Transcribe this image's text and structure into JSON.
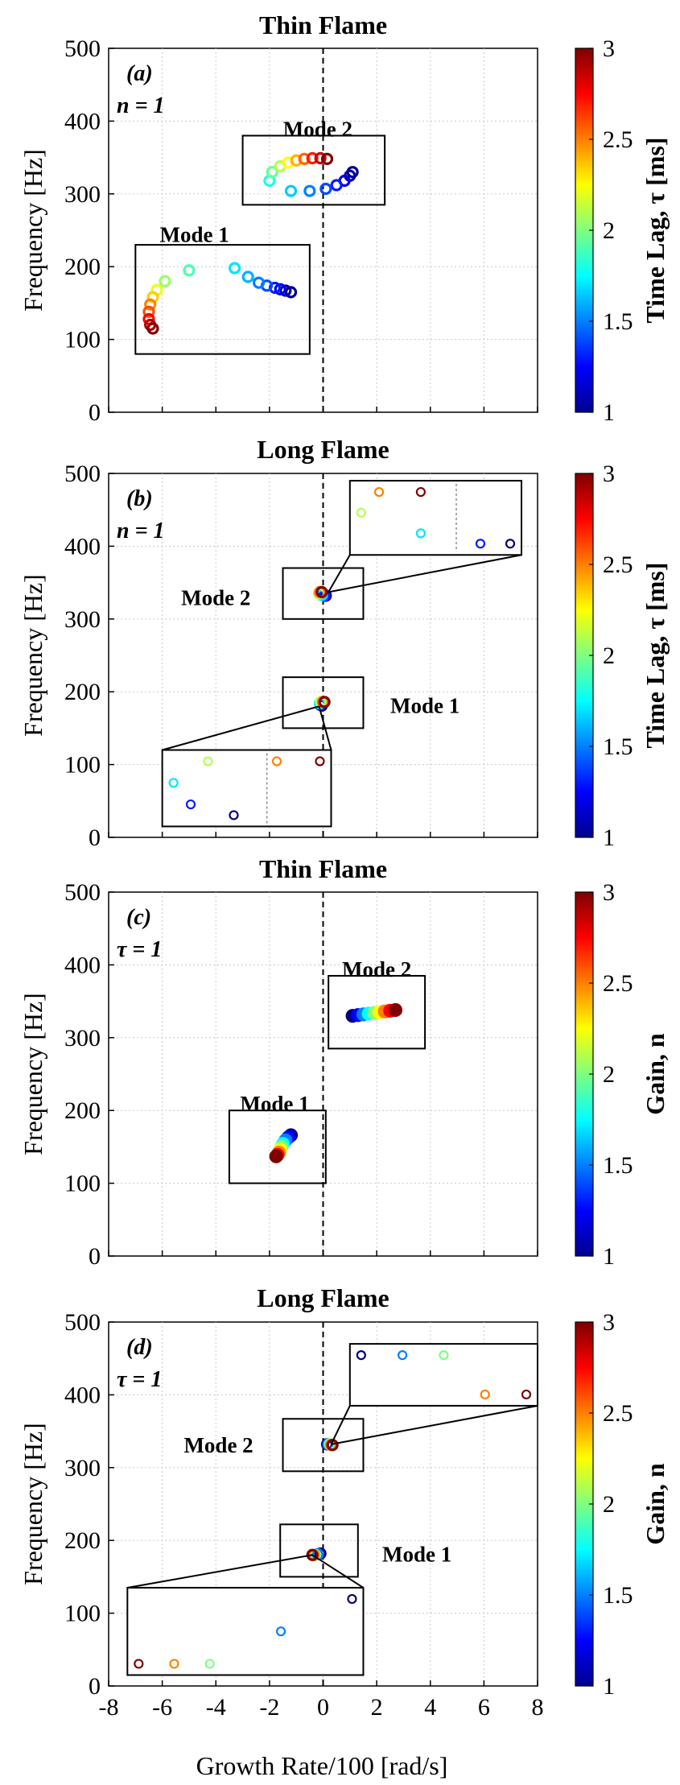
{
  "figure": {
    "xlabel": "Growth Rate/100 [rad/s]",
    "ylabel": "Frequency [Hz]",
    "xlim": [
      -8,
      8
    ],
    "ylim": [
      0,
      500
    ],
    "xticks": [
      "-8",
      "-6",
      "-4",
      "-2",
      "0",
      "2",
      "4",
      "6",
      "8"
    ],
    "yticks": [
      "0",
      "100",
      "200",
      "300",
      "400",
      "500"
    ],
    "colorbar_ticks": [
      "1",
      "1.5",
      "2",
      "2.5",
      "3"
    ],
    "colorbar_range": [
      1,
      3
    ]
  },
  "chart_data": [
    {
      "type": "scatter",
      "panel": "(a)",
      "title": "Thin Flame",
      "param_label": "n = 1",
      "colorbar_label": "Time Lag, τ [ms]",
      "color_variable": "time lag τ [ms]",
      "modes": [
        {
          "name": "Mode 1",
          "points": [
            {
              "x": -1.2,
              "y": 165,
              "c": 1.0
            },
            {
              "x": -1.4,
              "y": 167,
              "c": 1.1
            },
            {
              "x": -1.6,
              "y": 169,
              "c": 1.2
            },
            {
              "x": -1.8,
              "y": 171,
              "c": 1.3
            },
            {
              "x": -2.1,
              "y": 174,
              "c": 1.4
            },
            {
              "x": -2.4,
              "y": 178,
              "c": 1.5
            },
            {
              "x": -2.8,
              "y": 186,
              "c": 1.6
            },
            {
              "x": -3.3,
              "y": 198,
              "c": 1.7
            },
            {
              "x": -5.0,
              "y": 195,
              "c": 1.9
            },
            {
              "x": -5.9,
              "y": 180,
              "c": 2.05
            },
            {
              "x": -6.2,
              "y": 168,
              "c": 2.2
            },
            {
              "x": -6.35,
              "y": 158,
              "c": 2.35
            },
            {
              "x": -6.45,
              "y": 148,
              "c": 2.5
            },
            {
              "x": -6.5,
              "y": 138,
              "c": 2.6
            },
            {
              "x": -6.5,
              "y": 128,
              "c": 2.75
            },
            {
              "x": -6.45,
              "y": 120,
              "c": 2.9
            },
            {
              "x": -6.35,
              "y": 115,
              "c": 3.0
            }
          ]
        },
        {
          "name": "Mode 2",
          "points": [
            {
              "x": 1.1,
              "y": 330,
              "c": 1.0
            },
            {
              "x": 1.0,
              "y": 325,
              "c": 1.1
            },
            {
              "x": 0.8,
              "y": 318,
              "c": 1.2
            },
            {
              "x": 0.5,
              "y": 312,
              "c": 1.3
            },
            {
              "x": 0.1,
              "y": 307,
              "c": 1.4
            },
            {
              "x": -0.5,
              "y": 304,
              "c": 1.5
            },
            {
              "x": -1.2,
              "y": 304,
              "c": 1.65
            },
            {
              "x": -2.0,
              "y": 318,
              "c": 1.8
            },
            {
              "x": -1.9,
              "y": 330,
              "c": 1.95
            },
            {
              "x": -1.6,
              "y": 338,
              "c": 2.1
            },
            {
              "x": -1.3,
              "y": 343,
              "c": 2.25
            },
            {
              "x": -1.0,
              "y": 346,
              "c": 2.4
            },
            {
              "x": -0.7,
              "y": 348,
              "c": 2.55
            },
            {
              "x": -0.4,
              "y": 349,
              "c": 2.7
            },
            {
              "x": -0.1,
              "y": 349,
              "c": 2.85
            },
            {
              "x": 0.15,
              "y": 348,
              "c": 3.0
            }
          ]
        }
      ]
    },
    {
      "type": "scatter",
      "panel": "(b)",
      "title": "Long Flame",
      "param_label": "n = 1",
      "colorbar_label": "Time Lag, τ [ms]",
      "color_variable": "time lag τ [ms]",
      "modes": [
        {
          "name": "Mode 1",
          "points": [
            {
              "x": -0.05,
              "y": 181,
              "c": 1.0
            },
            {
              "x": -0.1,
              "y": 182,
              "c": 1.3
            },
            {
              "x": -0.12,
              "y": 184,
              "c": 1.7
            },
            {
              "x": -0.08,
              "y": 186,
              "c": 2.1
            },
            {
              "x": 0.0,
              "y": 186,
              "c": 2.5
            },
            {
              "x": 0.05,
              "y": 186,
              "c": 3.0
            }
          ]
        },
        {
          "name": "Mode 2",
          "points": [
            {
              "x": 0.1,
              "y": 332,
              "c": 1.0
            },
            {
              "x": 0.05,
              "y": 332,
              "c": 1.3
            },
            {
              "x": -0.05,
              "y": 333,
              "c": 1.7
            },
            {
              "x": -0.15,
              "y": 335,
              "c": 2.1
            },
            {
              "x": -0.12,
              "y": 337,
              "c": 2.5
            },
            {
              "x": -0.05,
              "y": 337,
              "c": 3.0
            }
          ]
        }
      ]
    },
    {
      "type": "scatter",
      "panel": "(c)",
      "title": "Thin Flame",
      "param_label": "τ = 1",
      "colorbar_label": "Gain, n",
      "color_variable": "gain n",
      "modes": [
        {
          "name": "Mode 1",
          "points": [
            {
              "x": -1.2,
              "y": 166,
              "c": 1.0
            },
            {
              "x": -1.3,
              "y": 163,
              "c": 1.25
            },
            {
              "x": -1.4,
              "y": 159,
              "c": 1.5
            },
            {
              "x": -1.5,
              "y": 154,
              "c": 1.75
            },
            {
              "x": -1.55,
              "y": 150,
              "c": 2.0
            },
            {
              "x": -1.6,
              "y": 146,
              "c": 2.25
            },
            {
              "x": -1.65,
              "y": 142,
              "c": 2.5
            },
            {
              "x": -1.7,
              "y": 139,
              "c": 2.75
            },
            {
              "x": -1.75,
              "y": 137,
              "c": 3.0
            }
          ]
        },
        {
          "name": "Mode 2",
          "points": [
            {
              "x": 1.1,
              "y": 330,
              "c": 1.0
            },
            {
              "x": 1.3,
              "y": 331,
              "c": 1.25
            },
            {
              "x": 1.5,
              "y": 332,
              "c": 1.5
            },
            {
              "x": 1.7,
              "y": 333,
              "c": 1.75
            },
            {
              "x": 1.9,
              "y": 334,
              "c": 2.0
            },
            {
              "x": 2.1,
              "y": 335,
              "c": 2.25
            },
            {
              "x": 2.3,
              "y": 336,
              "c": 2.5
            },
            {
              "x": 2.5,
              "y": 337,
              "c": 2.75
            },
            {
              "x": 2.7,
              "y": 338,
              "c": 3.0
            }
          ]
        }
      ]
    },
    {
      "type": "scatter",
      "panel": "(d)",
      "title": "Long Flame",
      "param_label": "τ = 1",
      "colorbar_label": "Gain, n",
      "color_variable": "gain n",
      "modes": [
        {
          "name": "Mode 1",
          "points": [
            {
              "x": -0.1,
              "y": 182,
              "c": 1.0
            },
            {
              "x": -0.2,
              "y": 181,
              "c": 1.5
            },
            {
              "x": -0.3,
              "y": 180,
              "c": 2.0
            },
            {
              "x": -0.35,
              "y": 180,
              "c": 2.5
            },
            {
              "x": -0.4,
              "y": 180,
              "c": 3.0
            }
          ]
        },
        {
          "name": "Mode 2",
          "points": [
            {
              "x": 0.15,
              "y": 332,
              "c": 1.0
            },
            {
              "x": 0.2,
              "y": 332,
              "c": 1.5
            },
            {
              "x": 0.25,
              "y": 332,
              "c": 2.0
            },
            {
              "x": 0.3,
              "y": 331,
              "c": 2.5
            },
            {
              "x": 0.35,
              "y": 331,
              "c": 3.0
            }
          ]
        }
      ]
    }
  ]
}
